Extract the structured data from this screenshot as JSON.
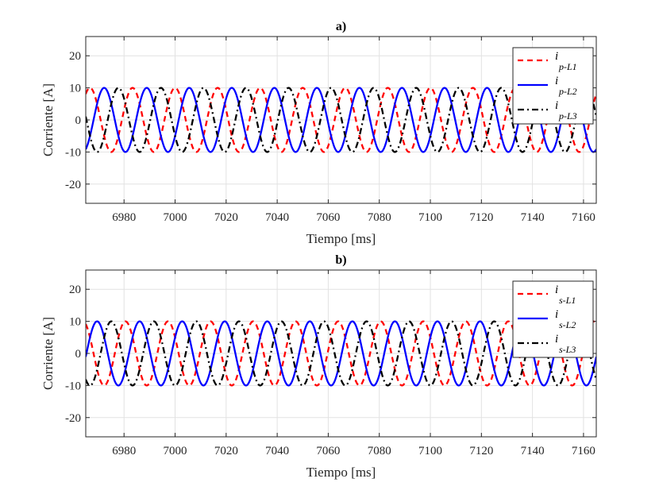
{
  "chart_data": [
    {
      "type": "line",
      "title": "a)",
      "xlabel": "Tiempo [ms]",
      "ylabel": "Corriente [A]",
      "xlim": [
        6965,
        7165
      ],
      "ylim": [
        -26,
        26
      ],
      "xticks": [
        6980,
        7000,
        7020,
        7040,
        7060,
        7080,
        7100,
        7120,
        7140,
        7160
      ],
      "yticks": [
        20,
        10,
        0,
        -10,
        -20
      ],
      "grid": true,
      "legend_position": "top-right",
      "frequency_hz": 60,
      "series": [
        {
          "name": "i_p-L1",
          "label_main": "i",
          "label_sub": "p-L1",
          "color": "#ff0000",
          "style": "dashed",
          "amplitude": 10,
          "phase_deg": 90
        },
        {
          "name": "i_p-L2",
          "label_main": "i",
          "label_sub": "p-L2",
          "color": "#0000ff",
          "style": "solid",
          "amplitude": 10,
          "phase_deg": -30
        },
        {
          "name": "i_p-L3",
          "label_main": "i",
          "label_sub": "p-L3",
          "color": "#000000",
          "style": "dashdot",
          "amplitude": 10,
          "phase_deg": 210
        }
      ]
    },
    {
      "type": "line",
      "title": "b)",
      "xlabel": "Tiempo [ms]",
      "ylabel": "Corriente [A]",
      "xlim": [
        6965,
        7165
      ],
      "ylim": [
        -26,
        26
      ],
      "xticks": [
        6980,
        7000,
        7020,
        7040,
        7060,
        7080,
        7100,
        7120,
        7140,
        7160
      ],
      "yticks": [
        20,
        10,
        0,
        -10,
        -20
      ],
      "grid": true,
      "legend_position": "top-right",
      "frequency_hz": 60,
      "series": [
        {
          "name": "i_s-L1",
          "label_main": "i",
          "label_sub": "s-L1",
          "color": "#ff0000",
          "style": "dashed",
          "amplitude": 10,
          "phase_deg": 150
        },
        {
          "name": "i_s-L2",
          "label_main": "i",
          "label_sub": "s-L2",
          "color": "#0000ff",
          "style": "solid",
          "amplitude": 10,
          "phase_deg": 30
        },
        {
          "name": "i_s-L3",
          "label_main": "i",
          "label_sub": "s-L3",
          "color": "#000000",
          "style": "dashdot",
          "amplitude": 10,
          "phase_deg": 270
        }
      ]
    }
  ]
}
